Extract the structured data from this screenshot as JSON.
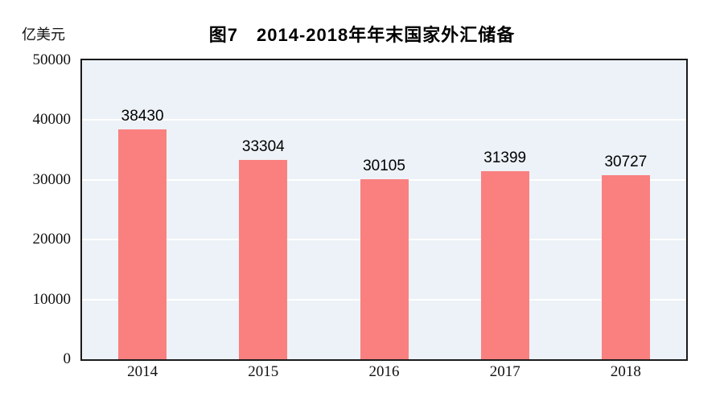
{
  "page": {
    "title": "图7　2014-2018年年末国家外汇储备",
    "unit_label": "亿美元"
  },
  "chart_data": {
    "type": "bar",
    "title": "图7　2014-2018年年末国家外汇储备",
    "ylabel": "亿美元",
    "xlabel": "",
    "categories": [
      "2014",
      "2015",
      "2016",
      "2017",
      "2018"
    ],
    "values": [
      38430,
      33304,
      30105,
      31399,
      30727
    ],
    "data_labels": [
      "38430",
      "33304",
      "30105",
      "31399",
      "30727"
    ],
    "ylim": [
      0,
      50000
    ],
    "y_ticks": [
      "0",
      "10000",
      "20000",
      "30000",
      "40000",
      "50000"
    ],
    "grid": "horizontal",
    "legend": "none",
    "colors": {
      "bar_fill": "#FA8080",
      "plot_background": "#ECF2F7",
      "gridline": "#FFFFFF",
      "frame_border": "#1A1A1A",
      "text": "#000000"
    }
  }
}
